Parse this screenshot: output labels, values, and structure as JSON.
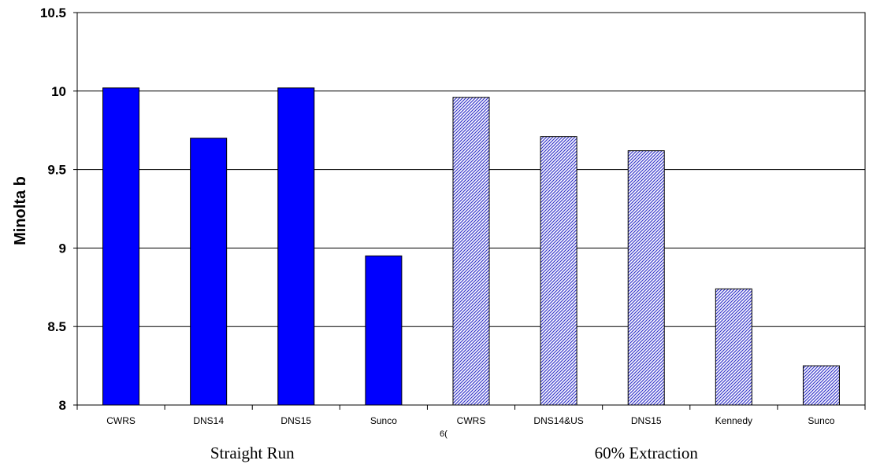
{
  "chart_data": {
    "type": "bar",
    "ylabel": "Minolta b",
    "ylim": [
      8,
      10.5
    ],
    "yticks": [
      "8",
      "8.5",
      "9",
      "9.5",
      "10",
      "10.5"
    ],
    "grid": "horizontal",
    "categories": [
      "CWRS",
      "DNS14",
      "DNS15",
      "Sunco",
      "CWRS",
      "DNS14&US",
      "DNS15",
      "Kennedy",
      "Sunco"
    ],
    "values": [
      10.02,
      9.7,
      10.02,
      8.95,
      9.96,
      9.71,
      9.62,
      8.74,
      8.25
    ],
    "groups": [
      {
        "label": "Straight Run",
        "count": 4,
        "fill": "#0000ff",
        "pattern": "solid"
      },
      {
        "label": "60% Extraction",
        "count": 5,
        "fill": "#9999ff",
        "pattern": "diagonal-hatch"
      }
    ],
    "stray_text": "6("
  }
}
